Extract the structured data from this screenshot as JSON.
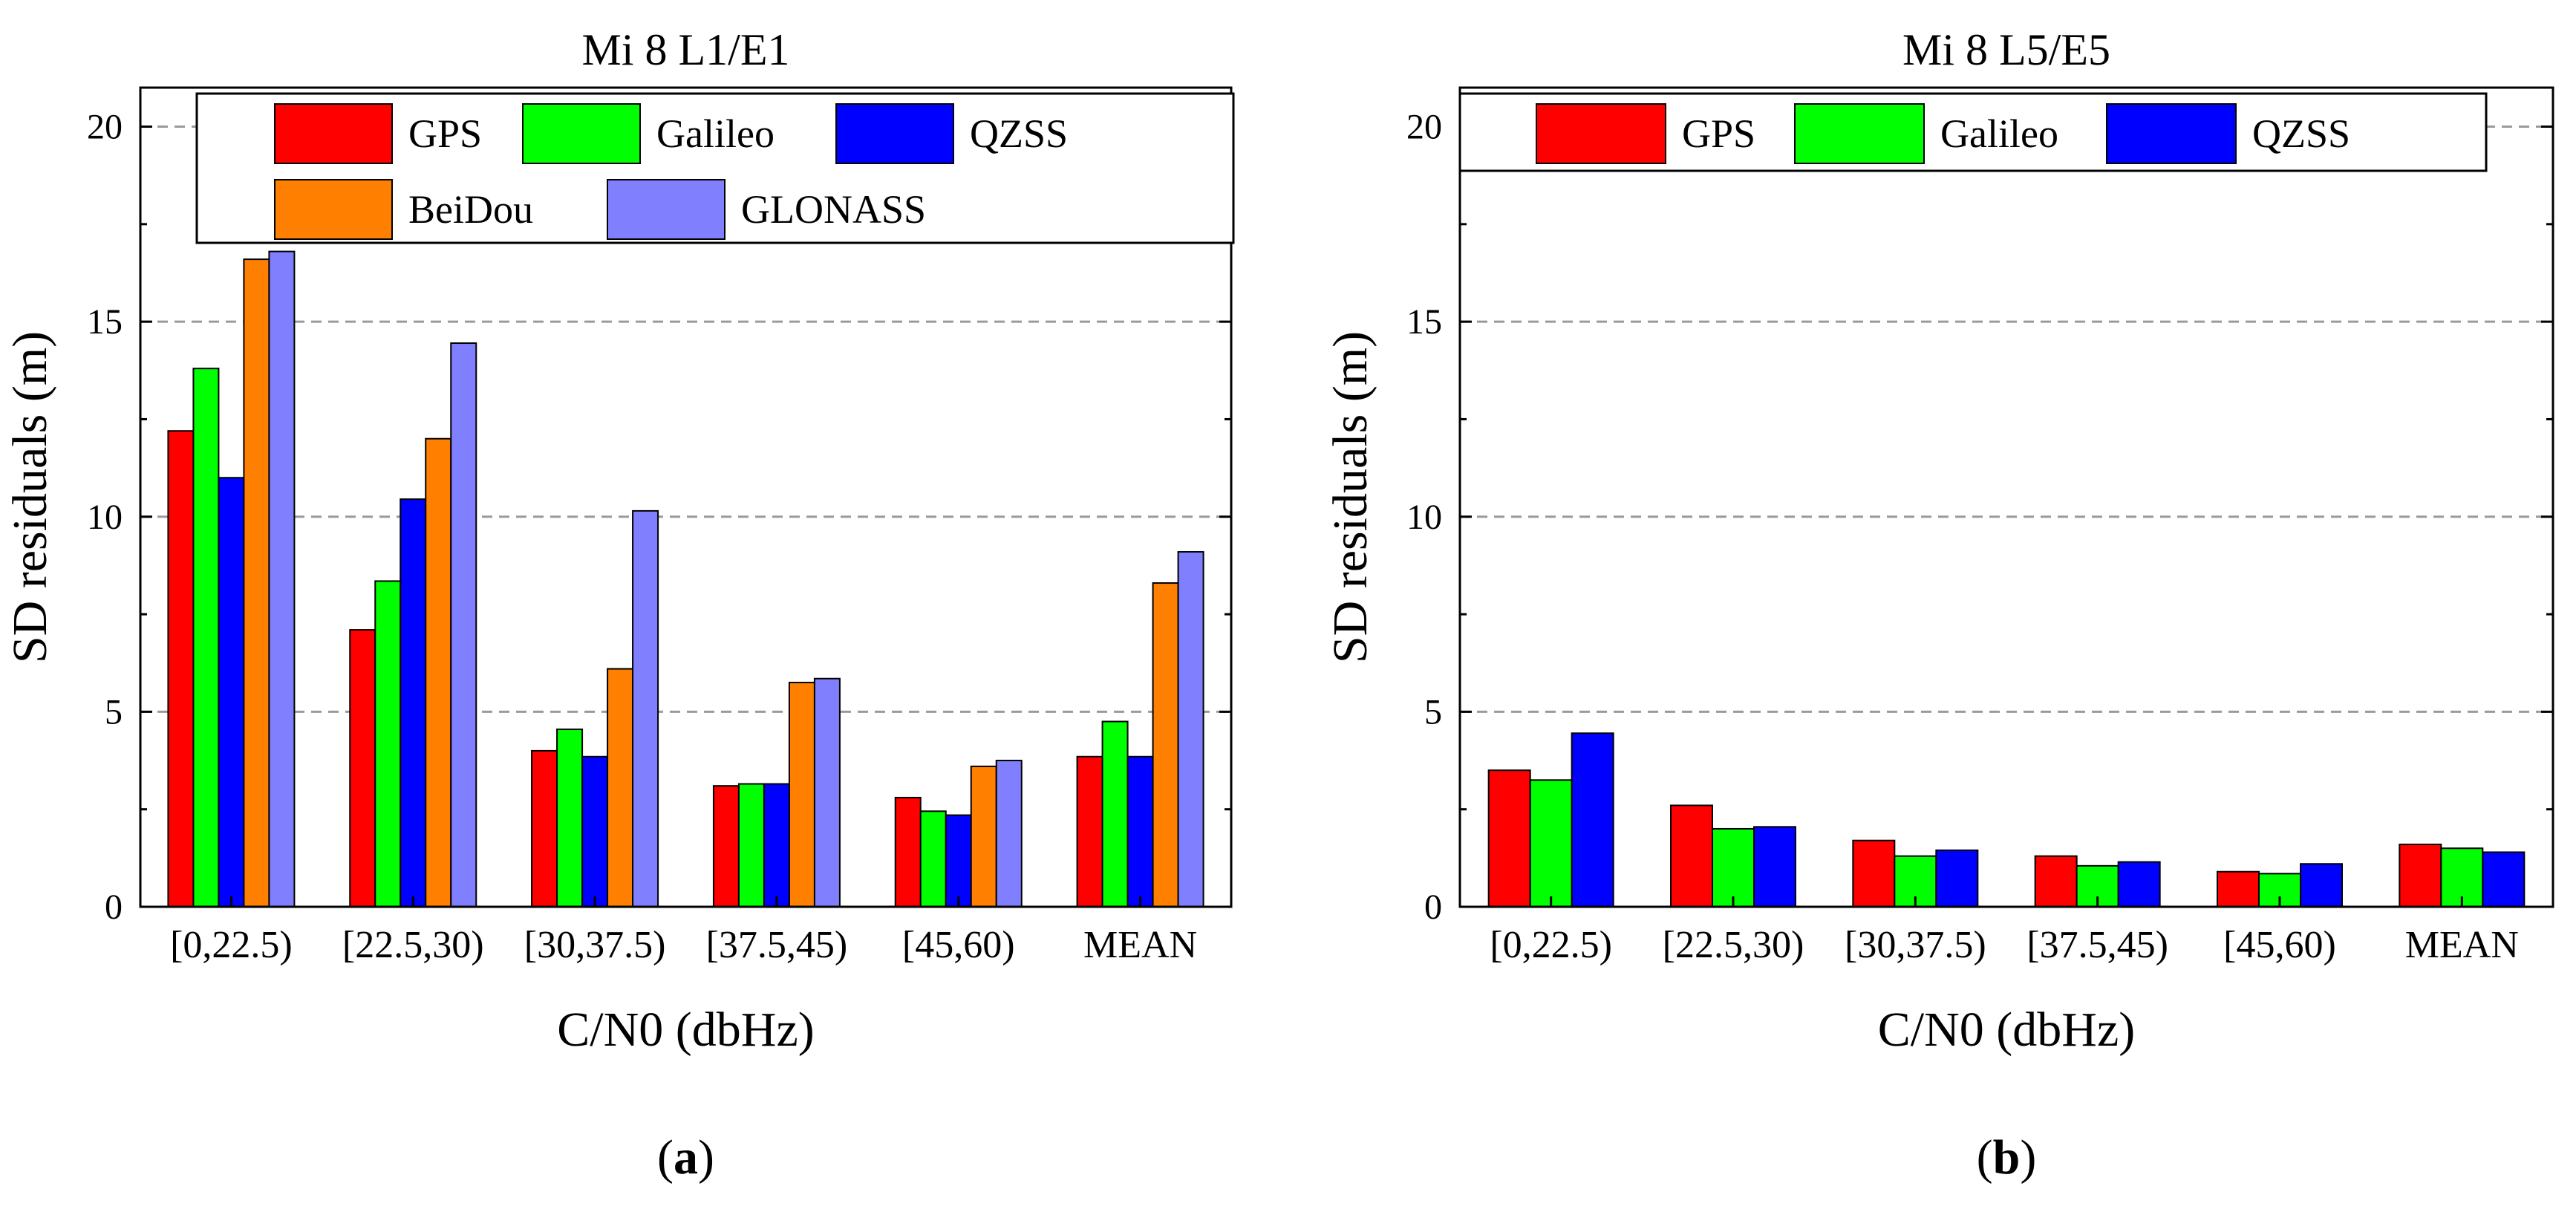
{
  "chart_data": [
    {
      "type": "bar",
      "title": "Mi 8 L1/E1",
      "xlabel": "C/N0 (dbHz)",
      "ylabel": "SD residuals (m)",
      "ylim": [
        0,
        21
      ],
      "yticks": [
        "0",
        "5",
        "10",
        "15",
        "20"
      ],
      "grid": "horizontal dashed",
      "legend_position": "top",
      "categories": [
        "[0,22.5)",
        "[22.5,30)",
        "[30,37.5)",
        "[37.5,45)",
        "[45,60)",
        "MEAN"
      ],
      "series": [
        {
          "name": "GPS",
          "color": "#ff0000",
          "values": [
            12.2,
            7.1,
            4.0,
            3.1,
            2.8,
            3.85
          ]
        },
        {
          "name": "Galileo",
          "color": "#00ff00",
          "values": [
            13.8,
            8.35,
            4.55,
            3.15,
            2.45,
            4.75
          ]
        },
        {
          "name": "QZSS",
          "color": "#0000ff",
          "values": [
            11.0,
            10.45,
            3.85,
            3.15,
            2.35,
            3.85
          ]
        },
        {
          "name": "BeiDou",
          "color": "#ff8000",
          "values": [
            16.6,
            12.0,
            6.1,
            5.75,
            3.6,
            8.3
          ]
        },
        {
          "name": "GLONASS",
          "color": "#8080ff",
          "values": [
            16.8,
            14.45,
            10.15,
            5.85,
            3.75,
            9.1
          ]
        }
      ],
      "caption": "a"
    },
    {
      "type": "bar",
      "title": "Mi 8 L5/E5",
      "xlabel": "C/N0 (dbHz)",
      "ylabel": "SD residuals (m)",
      "ylim": [
        0,
        21
      ],
      "yticks": [
        "0",
        "5",
        "10",
        "15",
        "20"
      ],
      "grid": "horizontal dashed",
      "legend_position": "top",
      "categories": [
        "[0,22.5)",
        "[22.5,30)",
        "[30,37.5)",
        "[37.5,45)",
        "[45,60)",
        "MEAN"
      ],
      "series": [
        {
          "name": "GPS",
          "color": "#ff0000",
          "values": [
            3.5,
            2.6,
            1.7,
            1.3,
            0.9,
            1.6
          ]
        },
        {
          "name": "Galileo",
          "color": "#00ff00",
          "values": [
            3.25,
            2.0,
            1.3,
            1.05,
            0.85,
            1.5
          ]
        },
        {
          "name": "QZSS",
          "color": "#0000ff",
          "values": [
            4.45,
            2.05,
            1.45,
            1.15,
            1.1,
            1.4
          ]
        }
      ],
      "caption": "b"
    }
  ]
}
